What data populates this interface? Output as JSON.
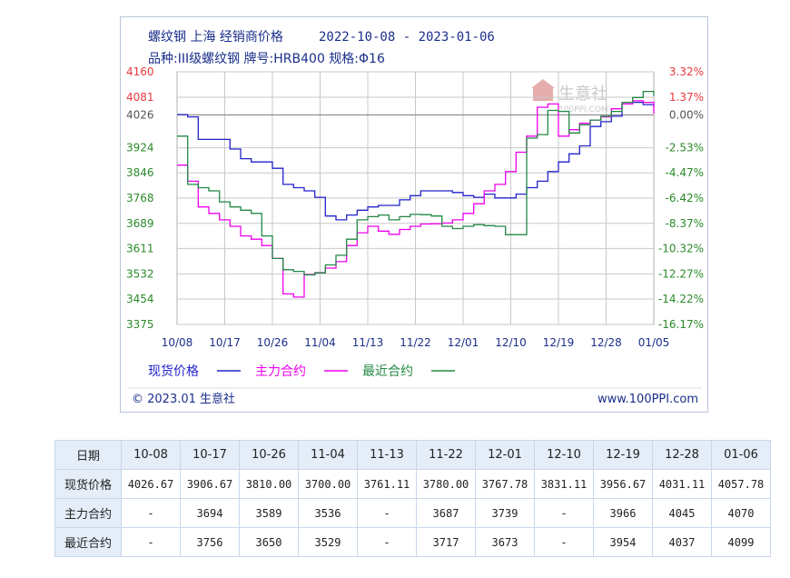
{
  "title": {
    "line1_name": "螺纹钢 上海 经销商价格",
    "line1_dates": "2022-10-08 - 2023-01-06",
    "line2": "品种:III级螺纹钢 牌号:HRB400 规格:Φ16"
  },
  "watermark": {
    "text": "生意社",
    "subtext": "100PPI.COM"
  },
  "footer": {
    "left": "© 2023.01 生意社",
    "right": "www.100PPI.com"
  },
  "colors": {
    "spot": "#2222cc",
    "main": "#ee00ee",
    "near": "#228844",
    "left_axis_red": "#e8383d",
    "left_axis_green": "#2a8a2a",
    "grid": "#c8c8c8"
  },
  "chart_data": {
    "type": "line",
    "title": "螺纹钢 上海 经销商价格 2022-10-08 - 2023-01-06",
    "subtitle": "品种:III级螺纹钢 牌号:HRB400 规格:Φ16",
    "x_tick_labels": [
      "10/08",
      "10/17",
      "10/26",
      "11/04",
      "11/13",
      "11/22",
      "12/01",
      "12/10",
      "12/19",
      "12/28",
      "01/05"
    ],
    "y_left_ticks": [
      "4160",
      "4081",
      "4026",
      "3924",
      "3846",
      "3768",
      "3689",
      "3611",
      "3532",
      "3454",
      "3375"
    ],
    "y_right_ticks": [
      "3.32%",
      "1.37%",
      "0.00%",
      "-2.53%",
      "-4.47%",
      "-6.42%",
      "-8.37%",
      "-10.32%",
      "-12.27%",
      "-14.22%",
      "-16.17%"
    ],
    "ylim": [
      3375,
      4160
    ],
    "baseline": 4026,
    "grid": true,
    "legend_position": "bottom-left",
    "series": [
      {
        "name": "现货价格",
        "color": "#2222cc",
        "x": [
          0,
          2,
          4,
          6,
          8,
          10,
          12,
          14,
          16,
          18,
          20,
          22,
          24,
          26,
          28,
          30,
          32,
          34,
          36,
          38,
          40,
          42,
          44,
          46,
          48,
          50,
          52,
          54,
          56,
          58,
          60,
          62,
          64,
          66,
          68,
          70,
          72,
          74,
          76,
          78,
          80,
          82,
          84,
          86,
          88,
          90
        ],
        "values": [
          4027,
          4020,
          3950,
          3950,
          3950,
          3920,
          3890,
          3880,
          3880,
          3860,
          3810,
          3800,
          3790,
          3770,
          3712,
          3700,
          3715,
          3730,
          3740,
          3745,
          3745,
          3762,
          3775,
          3790,
          3790,
          3790,
          3785,
          3775,
          3770,
          3780,
          3768,
          3768,
          3780,
          3800,
          3820,
          3850,
          3880,
          3905,
          3930,
          3990,
          4005,
          4022,
          4060,
          4065,
          4058,
          4050
        ]
      },
      {
        "name": "主力合约",
        "color": "#ee00ee",
        "x": [
          0,
          2,
          4,
          6,
          8,
          10,
          12,
          14,
          16,
          18,
          20,
          22,
          24,
          26,
          28,
          30,
          32,
          34,
          36,
          38,
          40,
          42,
          44,
          46,
          48,
          50,
          52,
          54,
          56,
          58,
          60,
          62,
          64,
          66,
          68,
          70,
          72,
          74,
          76,
          78,
          80,
          82,
          84,
          86,
          88,
          90
        ],
        "values": [
          3870,
          3820,
          3740,
          3720,
          3700,
          3680,
          3650,
          3640,
          3620,
          3580,
          3470,
          3460,
          3530,
          3536,
          3550,
          3570,
          3620,
          3660,
          3680,
          3665,
          3655,
          3670,
          3680,
          3687,
          3688,
          3690,
          3700,
          3720,
          3750,
          3790,
          3810,
          3850,
          3910,
          3960,
          4050,
          4060,
          3960,
          3980,
          4000,
          4010,
          4020,
          4045,
          4060,
          4070,
          4065,
          4030
        ]
      },
      {
        "name": "最近合约",
        "color": "#228844",
        "x": [
          0,
          2,
          4,
          6,
          8,
          10,
          12,
          14,
          16,
          18,
          20,
          22,
          24,
          26,
          28,
          30,
          32,
          34,
          36,
          38,
          40,
          42,
          44,
          46,
          48,
          50,
          52,
          54,
          56,
          58,
          60,
          62,
          64,
          66,
          68,
          70,
          72,
          74,
          76,
          78,
          80,
          82,
          84,
          86,
          88,
          90
        ],
        "values": [
          3960,
          3810,
          3800,
          3790,
          3756,
          3740,
          3730,
          3720,
          3650,
          3580,
          3545,
          3540,
          3529,
          3535,
          3560,
          3590,
          3640,
          3700,
          3710,
          3715,
          3700,
          3710,
          3717,
          3716,
          3712,
          3680,
          3673,
          3680,
          3685,
          3682,
          3680,
          3654,
          3654,
          3954,
          3965,
          4040,
          4037,
          3970,
          3995,
          4010,
          4022,
          4037,
          4065,
          4080,
          4099,
          4085
        ]
      }
    ]
  },
  "legend": [
    {
      "label": "现货价格",
      "key": "spot"
    },
    {
      "label": "主力合约",
      "key": "main"
    },
    {
      "label": "最近合约",
      "key": "near"
    }
  ],
  "table": {
    "header_label": "日期",
    "dates": [
      "10-08",
      "10-17",
      "10-26",
      "11-04",
      "11-13",
      "11-22",
      "12-01",
      "12-10",
      "12-19",
      "12-28",
      "01-06"
    ],
    "rows": [
      {
        "label": "现货价格",
        "values": [
          "4026.67",
          "3906.67",
          "3810.00",
          "3700.00",
          "3761.11",
          "3780.00",
          "3767.78",
          "3831.11",
          "3956.67",
          "4031.11",
          "4057.78"
        ]
      },
      {
        "label": "主力合约",
        "values": [
          "-",
          "3694",
          "3589",
          "3536",
          "-",
          "3687",
          "3739",
          "-",
          "3966",
          "4045",
          "4070"
        ]
      },
      {
        "label": "最近合约",
        "values": [
          "-",
          "3756",
          "3650",
          "3529",
          "-",
          "3717",
          "3673",
          "-",
          "3954",
          "4037",
          "4099"
        ]
      }
    ]
  }
}
